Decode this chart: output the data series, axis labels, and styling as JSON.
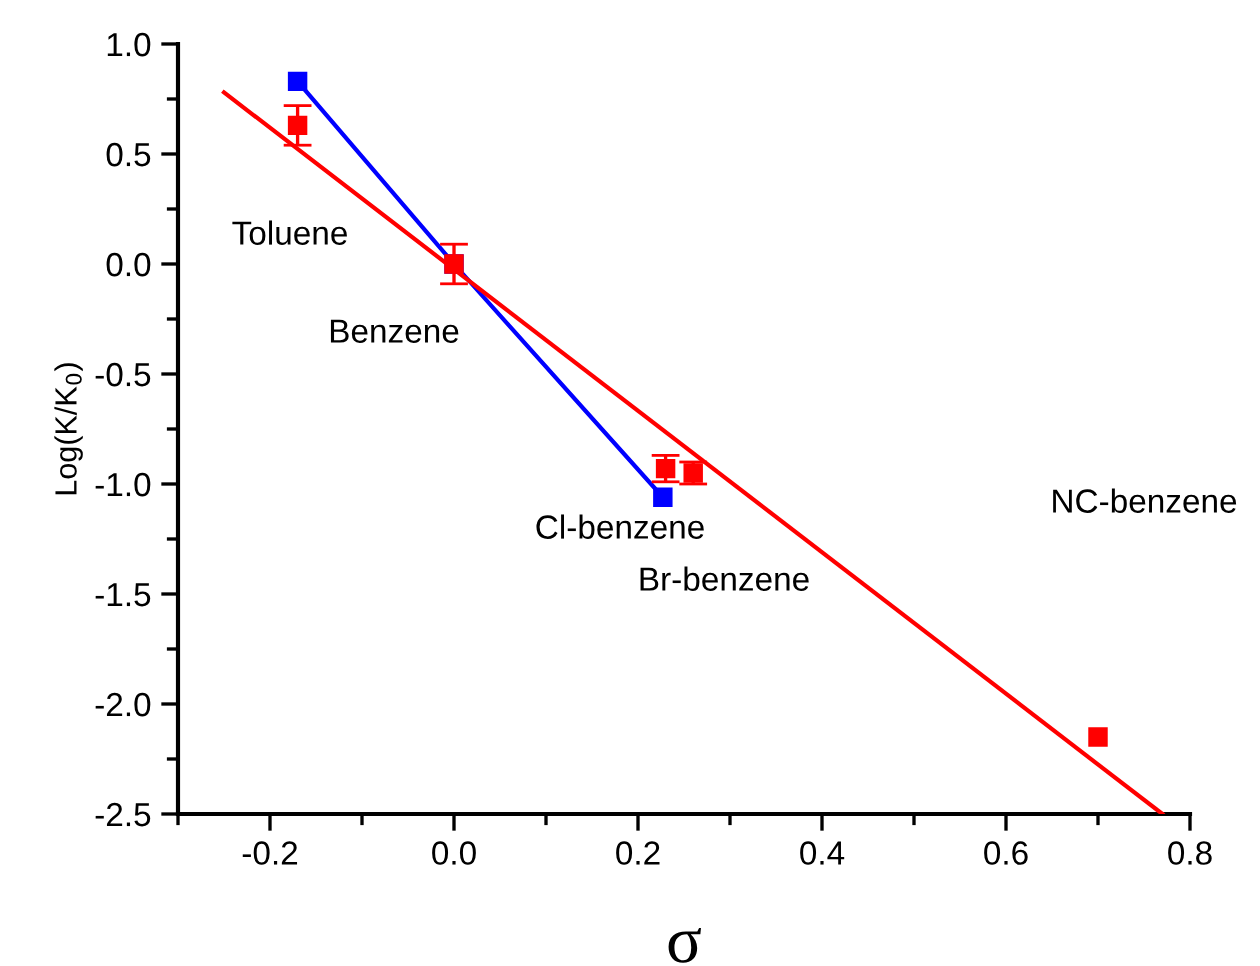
{
  "chart_data": {
    "type": "scatter",
    "xlabel": "σ",
    "ylabel": "Log(K/K$_{0}$)",
    "xlim": [
      -0.3,
      0.8
    ],
    "ylim": [
      -2.5,
      1.0
    ],
    "xticks": [
      -0.2,
      {
        "value": 0,
        "label": "0.0"
      },
      0.2,
      0.4,
      0.6,
      0.8
    ],
    "yticks": [
      -2.5,
      {
        "value": -2,
        "label": "-2.0"
      },
      -1.5,
      {
        "value": -1,
        "label": "-1.0"
      },
      -0.5,
      {
        "value": 0,
        "label": "0.0"
      },
      0.5,
      {
        "value": 1,
        "label": "1.0"
      }
    ],
    "grid": false,
    "legend": false,
    "marker": "square",
    "series": [
      {
        "color": "#ff0000",
        "x": [
          -0.17,
          0.0,
          0.23,
          0.26,
          0.7
        ],
        "values": [
          0.63,
          0.0,
          -0.93,
          -0.95,
          -2.15
        ],
        "errors": [
          0.09,
          0.09,
          0.06,
          0.05,
          null
        ]
      },
      {
        "type": "line",
        "color": "#0000ff",
        "x": [
          -0.17,
          0.0,
          0.227
        ],
        "values": [
          0.83,
          0.0,
          -1.06
        ],
        "marker": "square"
      },
      {
        "type": "line",
        "color": "#ff0000",
        "x": [
          -0.25,
          0.77
        ],
        "values": [
          0.78,
          -2.5
        ],
        "marker": "none"
      }
    ],
    "annotations": [
      "Toluene",
      "Benzene",
      "Cl-benzene",
      "Br-benzene",
      "NC-benzene"
    ]
  }
}
